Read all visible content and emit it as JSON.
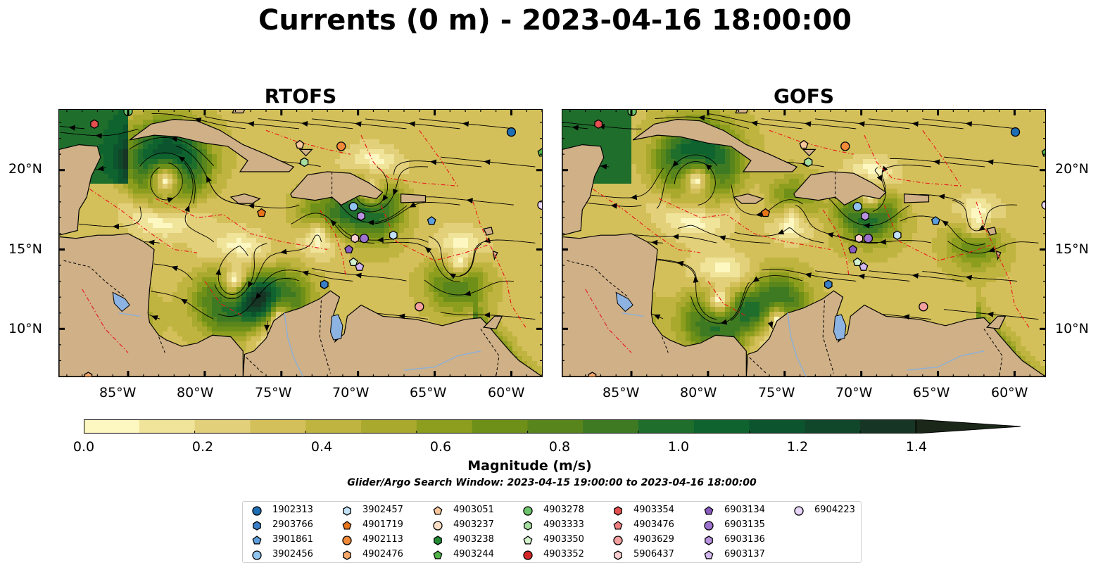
{
  "title": "Currents (0 m) - 2023-04-16 18:00:00",
  "panels": [
    {
      "title": "RTOFS"
    },
    {
      "title": "GOFS"
    }
  ],
  "axes": {
    "lon_ticks": [
      "85°W",
      "80°W",
      "75°W",
      "70°W",
      "65°W",
      "60°W"
    ],
    "lat_ticks": [
      "20°N",
      "15°N",
      "10°N"
    ]
  },
  "colorbar": {
    "label": "Magnitude (m/s)",
    "ticks": [
      "0.0",
      "0.2",
      "0.4",
      "0.6",
      "0.8",
      "1.0",
      "1.2",
      "1.4"
    ],
    "range": [
      0,
      1.5
    ],
    "extend": "max",
    "colormap": [
      "#fdf8c2",
      "#f0e39a",
      "#e2d07a",
      "#d4c05a",
      "#c0b440",
      "#a9a92e",
      "#8d9e1e",
      "#6f9018",
      "#58851c",
      "#3d7a22",
      "#1f6e2c",
      "#0f632e",
      "#0c542e",
      "#10462a",
      "#173524",
      "#1b2819"
    ]
  },
  "search_window": "Glider/Argo Search Window: 2023-04-15 19:00:00 to 2023-04-16 18:00:00",
  "floats": [
    {
      "id": "1902313",
      "marker": "circle",
      "color": "#1f6eb4",
      "lon": -60.0,
      "lat": 22.4
    },
    {
      "id": "2903766",
      "marker": "hexagon",
      "color": "#3a7fc7",
      "lon": -72.2,
      "lat": 12.8
    },
    {
      "id": "3901861",
      "marker": "pentagon",
      "color": "#5d9fdc",
      "lon": -65.2,
      "lat": 16.8
    },
    {
      "id": "3902456",
      "marker": "circle",
      "color": "#90c3ee",
      "lon": -70.3,
      "lat": 17.7
    },
    {
      "id": "3902457",
      "marker": "hexagon",
      "color": "#c2e1f7",
      "lon": -67.7,
      "lat": 15.9
    },
    {
      "id": "4901719",
      "marker": "pentagon",
      "color": "#e8751a",
      "lon": -76.3,
      "lat": 17.3
    },
    {
      "id": "4902113",
      "marker": "circle",
      "color": "#f08a3a",
      "lon": -71.1,
      "lat": 21.5
    },
    {
      "id": "4902476",
      "marker": "hexagon",
      "color": "#f5a86a",
      "lon": -87.6,
      "lat": 7.0
    },
    {
      "id": "4903051",
      "marker": "pentagon",
      "color": "#f7c79b",
      "lon": -73.8,
      "lat": 21.6
    },
    {
      "id": "4903237",
      "marker": "circle",
      "color": "#fbe0c6",
      "lon": null,
      "lat": null
    },
    {
      "id": "4903238",
      "marker": "hexagon",
      "color": "#238b34",
      "lon": null,
      "lat": null
    },
    {
      "id": "4903244",
      "marker": "pentagon",
      "color": "#52b448",
      "lon": -58.0,
      "lat": 21.1
    },
    {
      "id": "4903278",
      "marker": "circle",
      "color": "#6cc56c",
      "lon": -85.0,
      "lat": 23.7
    },
    {
      "id": "4903333",
      "marker": "hexagon",
      "color": "#a6dea0",
      "lon": -73.5,
      "lat": 20.5
    },
    {
      "id": "4903350",
      "marker": "pentagon",
      "color": "#d4f2cd",
      "lon": -70.3,
      "lat": 14.2
    },
    {
      "id": "4903352",
      "marker": "circle",
      "color": "#d62728",
      "lon": null,
      "lat": null
    },
    {
      "id": "4903354",
      "marker": "hexagon",
      "color": "#e45050",
      "lon": -87.2,
      "lat": 22.9
    },
    {
      "id": "4903476",
      "marker": "pentagon",
      "color": "#f07e7e",
      "lon": null,
      "lat": null
    },
    {
      "id": "4903629",
      "marker": "circle",
      "color": "#f4a0a0",
      "lon": -66.0,
      "lat": 11.4
    },
    {
      "id": "5906437",
      "marker": "hexagon",
      "color": "#f9cfd2",
      "lon": -70.2,
      "lat": 15.7
    },
    {
      "id": "6903134",
      "marker": "pentagon",
      "color": "#8a5cc0",
      "lon": -70.6,
      "lat": 15.0
    },
    {
      "id": "6903135",
      "marker": "circle",
      "color": "#9d72cf",
      "lon": -69.6,
      "lat": 15.7
    },
    {
      "id": "6903136",
      "marker": "hexagon",
      "color": "#b992e0",
      "lon": -69.8,
      "lat": 17.1
    },
    {
      "id": "6903137",
      "marker": "pentagon",
      "color": "#d2b8ee",
      "lon": -69.9,
      "lat": 13.9
    },
    {
      "id": "6904223",
      "marker": "circle",
      "color": "#e9d6f8",
      "lon": -58.0,
      "lat": 17.8
    }
  ]
}
